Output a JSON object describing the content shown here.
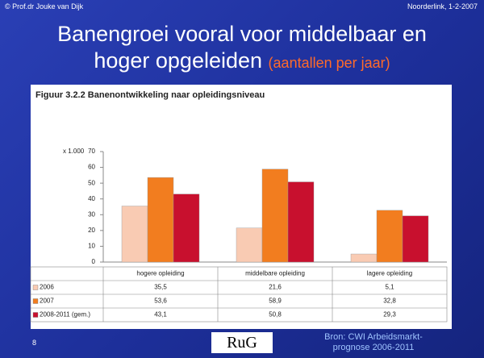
{
  "slide": {
    "header_left": "© Prof.dr Jouke van Dijk",
    "header_right": "Noorderlink, 1-2-2007",
    "title": "Banengroei vooral voor middelbaar en hoger opgeleiden",
    "subtitle": "(aantallen per jaar)",
    "page_number": "8",
    "logo": "RuG",
    "source": "Bron: CWI Arbeidsmarkt-prognose 2006-2011"
  },
  "chart_data": {
    "type": "bar",
    "title": "Figuur 3.2.2 Banenontwikkeling naar opleidingsniveau",
    "y_unit": "x 1.000",
    "categories": [
      "hogere opleiding",
      "middelbare opleiding",
      "lagere opleiding"
    ],
    "series": [
      {
        "name": "2006",
        "color": "#f9cbb3",
        "values": [
          35.5,
          21.6,
          5.1
        ],
        "value_labels": [
          "35,5",
          "21,6",
          "5,1"
        ]
      },
      {
        "name": "2007",
        "color": "#f27d1f",
        "values": [
          53.6,
          58.9,
          32.8
        ],
        "value_labels": [
          "53,6",
          "58,9",
          "32,8"
        ]
      },
      {
        "name": "2008-2011 (gem.)",
        "color": "#c8102e",
        "values": [
          43.1,
          50.8,
          29.3
        ],
        "value_labels": [
          "43,1",
          "50,8",
          "29,3"
        ]
      }
    ],
    "ylim": [
      0,
      70
    ],
    "yticks": [
      0,
      10,
      20,
      30,
      40,
      50,
      60,
      70
    ],
    "grid": false
  }
}
